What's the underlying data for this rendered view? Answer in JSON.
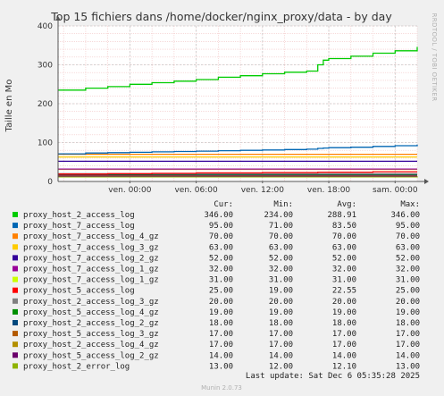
{
  "side_label": "RRDTOOL / TOBI OETIKER",
  "footer": {
    "last_update": "Last update: Sat Dec  6 05:35:28 2025",
    "munin": "Munin 2.0.73"
  },
  "legend_headers": {
    "cur": "Cur:",
    "min": "Min:",
    "avg": "Avg:",
    "max": "Max:"
  },
  "colors": {
    "background": "#f0f0f0",
    "plot_area": "#ffffff",
    "grid_minor": "#f2c5c5",
    "grid_major": "#c8c8c8"
  },
  "chart_data": {
    "type": "line",
    "title": "Top 15 fichiers dans /home/docker/nginx_proxy/data - by day",
    "ylabel": "Taille en Mo",
    "xlabel": "",
    "ylim": [
      0,
      400
    ],
    "yticks": [
      0,
      100,
      200,
      300,
      400
    ],
    "grid": true,
    "legend_position": "bottom",
    "x_range_hours": [
      -6.5,
      26
    ],
    "xticks": [
      {
        "label": "ven. 00:00",
        "h": 0
      },
      {
        "label": "ven. 06:00",
        "h": 6
      },
      {
        "label": "ven. 12:00",
        "h": 12
      },
      {
        "label": "ven. 18:00",
        "h": 18
      },
      {
        "label": "sam. 00:00",
        "h": 24
      }
    ],
    "x": [
      -6.5,
      -4,
      -2,
      0,
      2,
      4,
      6,
      8,
      10,
      12,
      14,
      16,
      17,
      17.5,
      18,
      20,
      22,
      24,
      26
    ],
    "series": [
      {
        "name": "proxy_host_2_access_log",
        "color": "#00cc00",
        "cur": "346.00",
        "min": "234.00",
        "avg": "288.91",
        "max": "346.00",
        "values": [
          235,
          240,
          244,
          250,
          254,
          258,
          262,
          268,
          272,
          277,
          281,
          284,
          300,
          312,
          316,
          322,
          330,
          336,
          346
        ]
      },
      {
        "name": "proxy_host_7_access_log",
        "color": "#0066b3",
        "cur": "95.00",
        "min": "71.00",
        "avg": "83.50",
        "max": "95.00",
        "values": [
          71,
          73,
          74,
          75,
          76,
          77,
          78,
          79,
          80,
          81,
          82,
          83,
          85,
          86,
          87,
          88,
          90,
          92,
          95
        ]
      },
      {
        "name": "proxy_host_7_access_log_4_gz",
        "color": "#ff8000",
        "cur": "70.00",
        "min": "70.00",
        "avg": "70.00",
        "max": "70.00",
        "values": [
          70,
          70,
          70,
          70,
          70,
          70,
          70,
          70,
          70,
          70,
          70,
          70,
          70,
          70,
          70,
          70,
          70,
          70,
          70
        ]
      },
      {
        "name": "proxy_host_7_access_log_3_gz",
        "color": "#ffcc00",
        "cur": "63.00",
        "min": "63.00",
        "avg": "63.00",
        "max": "63.00",
        "values": [
          63,
          63,
          63,
          63,
          63,
          63,
          63,
          63,
          63,
          63,
          63,
          63,
          63,
          63,
          63,
          63,
          63,
          63,
          63
        ]
      },
      {
        "name": "proxy_host_7_access_log_2_gz",
        "color": "#330099",
        "cur": "52.00",
        "min": "52.00",
        "avg": "52.00",
        "max": "52.00",
        "values": [
          52,
          52,
          52,
          52,
          52,
          52,
          52,
          52,
          52,
          52,
          52,
          52,
          52,
          52,
          52,
          52,
          52,
          52,
          52
        ]
      },
      {
        "name": "proxy_host_7_access_log_1_gz",
        "color": "#990099",
        "cur": "32.00",
        "min": "32.00",
        "avg": "32.00",
        "max": "32.00",
        "values": [
          32,
          32,
          32,
          32,
          32,
          32,
          32,
          32,
          32,
          32,
          32,
          32,
          32,
          32,
          32,
          32,
          32,
          32,
          32
        ]
      },
      {
        "name": "proxy_host_7_access_log_1_gz",
        "color": "#ccff00",
        "cur": "31.00",
        "min": "31.00",
        "avg": "31.00",
        "max": "31.00",
        "values": [
          31,
          31,
          31,
          31,
          31,
          31,
          31,
          31,
          31,
          31,
          31,
          31,
          31,
          31,
          31,
          31,
          31,
          31,
          31
        ]
      },
      {
        "name": "proxy_host_5_access_log",
        "color": "#ff0000",
        "cur": "25.00",
        "min": "19.00",
        "avg": "22.55",
        "max": "25.00",
        "values": [
          19,
          19,
          20,
          20,
          21,
          21,
          22,
          22,
          22,
          23,
          23,
          23,
          24,
          24,
          24,
          24,
          25,
          25,
          25
        ]
      },
      {
        "name": "proxy_host_2_access_log_3_gz",
        "color": "#808080",
        "cur": "20.00",
        "min": "20.00",
        "avg": "20.00",
        "max": "20.00",
        "values": [
          20,
          20,
          20,
          20,
          20,
          20,
          20,
          20,
          20,
          20,
          20,
          20,
          20,
          20,
          20,
          20,
          20,
          20,
          20
        ]
      },
      {
        "name": "proxy_host_5_access_log_4_gz",
        "color": "#008f00",
        "cur": "19.00",
        "min": "19.00",
        "avg": "19.00",
        "max": "19.00",
        "values": [
          19,
          19,
          19,
          19,
          19,
          19,
          19,
          19,
          19,
          19,
          19,
          19,
          19,
          19,
          19,
          19,
          19,
          19,
          19
        ]
      },
      {
        "name": "proxy_host_2_access_log_2_gz",
        "color": "#00487d",
        "cur": "18.00",
        "min": "18.00",
        "avg": "18.00",
        "max": "18.00",
        "values": [
          18,
          18,
          18,
          18,
          18,
          18,
          18,
          18,
          18,
          18,
          18,
          18,
          18,
          18,
          18,
          18,
          18,
          18,
          18
        ]
      },
      {
        "name": "proxy_host_5_access_log_3_gz",
        "color": "#b35a00",
        "cur": "17.00",
        "min": "17.00",
        "avg": "17.00",
        "max": "17.00",
        "values": [
          17,
          17,
          17,
          17,
          17,
          17,
          17,
          17,
          17,
          17,
          17,
          17,
          17,
          17,
          17,
          17,
          17,
          17,
          17
        ]
      },
      {
        "name": "proxy_host_2_access_log_4_gz",
        "color": "#b38f00",
        "cur": "17.00",
        "min": "17.00",
        "avg": "17.00",
        "max": "17.00",
        "values": [
          17,
          17,
          17,
          17,
          17,
          17,
          17,
          17,
          17,
          17,
          17,
          17,
          17,
          17,
          17,
          17,
          17,
          17,
          17
        ]
      },
      {
        "name": "proxy_host_5_access_log_2_gz",
        "color": "#6b006b",
        "cur": "14.00",
        "min": "14.00",
        "avg": "14.00",
        "max": "14.00",
        "values": [
          14,
          14,
          14,
          14,
          14,
          14,
          14,
          14,
          14,
          14,
          14,
          14,
          14,
          14,
          14,
          14,
          14,
          14,
          14
        ]
      },
      {
        "name": "proxy_host_2_error_log",
        "color": "#8fb300",
        "cur": "13.00",
        "min": "12.00",
        "avg": "12.10",
        "max": "13.00",
        "values": [
          12,
          12,
          12,
          12,
          12,
          12,
          12,
          12,
          12,
          12,
          12,
          12,
          12,
          12,
          12,
          12,
          12,
          12,
          13
        ]
      }
    ]
  }
}
